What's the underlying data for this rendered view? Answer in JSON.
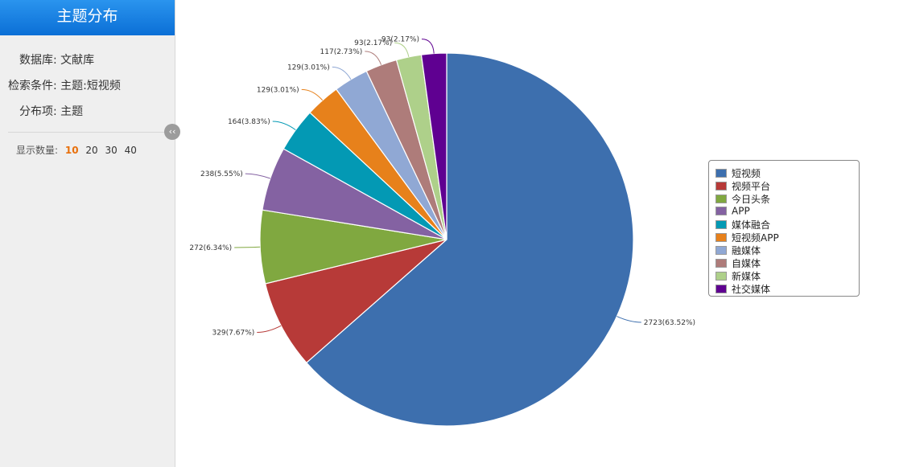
{
  "sidebar": {
    "title": "主题分布",
    "database_label": "数据库:",
    "database_value": "文献库",
    "condition_label": "检索条件:",
    "condition_value": "主题:短视频",
    "item_label": "分布项:",
    "item_value": "主题",
    "count_label": "显示数量:",
    "count_options": [
      "10",
      "20",
      "30",
      "40"
    ],
    "count_selected": "10",
    "collapse_icon": "double-chevron-left-icon"
  },
  "chart_data": {
    "type": "pie",
    "title": "",
    "legend_position": "right",
    "slices": [
      {
        "name": "短视频",
        "value": 2723,
        "percent": "63.52%",
        "label": "2723(63.52%)",
        "color": "#3d6fae"
      },
      {
        "name": "视频平台",
        "value": 329,
        "percent": "7.67%",
        "label": "329(7.67%)",
        "color": "#b73a38"
      },
      {
        "name": "今日头条",
        "value": 272,
        "percent": "6.34%",
        "label": "272(6.34%)",
        "color": "#80a840"
      },
      {
        "name": "APP",
        "value": 238,
        "percent": "5.55%",
        "label": "238(5.55%)",
        "color": "#8462a2"
      },
      {
        "name": "媒体融合",
        "value": 164,
        "percent": "3.83%",
        "label": "164(3.83%)",
        "color": "#0399b4"
      },
      {
        "name": "短视频APP",
        "value": 129,
        "percent": "3.01%",
        "label": "129(3.01%)",
        "color": "#e7811b"
      },
      {
        "name": "融媒体",
        "value": 129,
        "percent": "3.01%",
        "label": "129(3.01%)",
        "color": "#90a8d4"
      },
      {
        "name": "自媒体",
        "value": 117,
        "percent": "2.73%",
        "label": "117(2.73%)",
        "color": "#ae7c7a"
      },
      {
        "name": "新媒体",
        "value": 93,
        "percent": "2.17%",
        "label": "93(2.17%)",
        "color": "#aed08a"
      },
      {
        "name": "社交媒体",
        "value": 93,
        "percent": "2.17%",
        "label": "93(2.17%)",
        "color": "#5f0091"
      }
    ]
  }
}
